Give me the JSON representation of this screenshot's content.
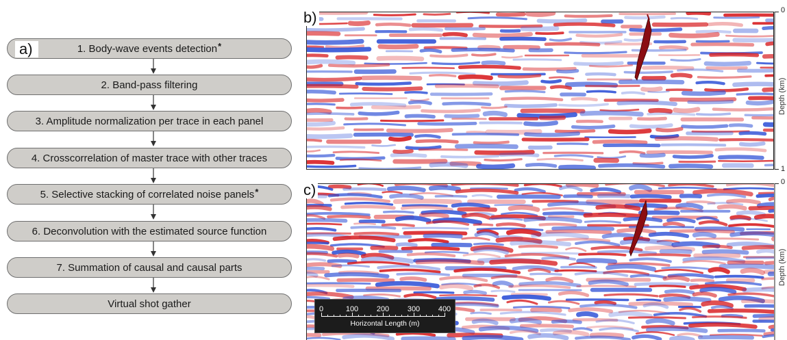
{
  "flowchart": {
    "panel_label": "a)",
    "steps": [
      {
        "text": "1. Body-wave events detection",
        "star": "*"
      },
      {
        "text": "2. Band-pass filtering",
        "star": ""
      },
      {
        "text": "3. Amplitude normalization per trace in each panel",
        "star": ""
      },
      {
        "text": "4. Crosscorrelation of master trace with other traces",
        "star": ""
      },
      {
        "text": "5. Selective stacking of correlated noise panels",
        "star": "*"
      },
      {
        "text": "6. Deconvolution with the estimated source function",
        "star": ""
      },
      {
        "text": "7. Summation of causal and causal parts",
        "star": ""
      },
      {
        "text": "Virtual shot gather",
        "star": ""
      }
    ]
  },
  "panel_b": {
    "label": "b)",
    "axis_top": "0",
    "axis_bottom": "1",
    "axis_title": "Depth (km)"
  },
  "panel_c": {
    "label": "c)",
    "axis_top": "0",
    "axis_title": "Depth (km)"
  },
  "scale_bar": {
    "ticks": [
      "0",
      "100",
      "200",
      "300",
      "400"
    ],
    "title": "Horizontal Length (m)"
  },
  "colors": {
    "positive": "#d7191c",
    "negative": "#2c4fd6",
    "box_fill": "#cfcdc9",
    "box_border": "#6e6e6e",
    "fault_body": "#8b0d12"
  }
}
